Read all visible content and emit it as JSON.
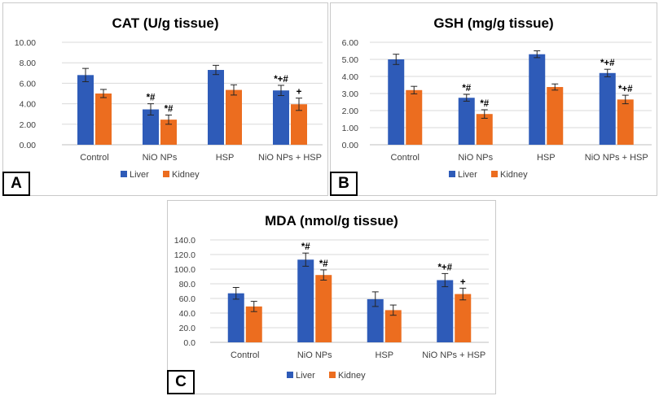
{
  "colors": {
    "liver": "#2e5bb8",
    "kidney": "#ec6d1f",
    "grid": "#d9d9d9",
    "axis": "#bfbfbf",
    "text": "#404040",
    "error": "#262626"
  },
  "chart_data": [
    {
      "type": "bar",
      "panel_label": "A",
      "title": "CAT (U/g tissue)",
      "categories": [
        "Control",
        "NiO NPs",
        "HSP",
        "NiO NPs + HSP"
      ],
      "series": [
        {
          "name": "Liver",
          "values": [
            6.8,
            3.45,
            7.3,
            5.3
          ],
          "errors": [
            0.65,
            0.55,
            0.45,
            0.5
          ],
          "annotations": [
            "",
            "*#",
            "",
            "*+#"
          ]
        },
        {
          "name": "Kidney",
          "values": [
            5.0,
            2.45,
            5.35,
            3.95
          ],
          "errors": [
            0.4,
            0.45,
            0.5,
            0.6
          ],
          "annotations": [
            "",
            "*#",
            "",
            "+"
          ]
        }
      ],
      "ylim": [
        0,
        10
      ],
      "yticks": [
        "0.00",
        "2.00",
        "4.00",
        "6.00",
        "8.00",
        "10.00"
      ],
      "xlabel": "",
      "ylabel": "",
      "grid": true,
      "legend": "bottom"
    },
    {
      "type": "bar",
      "panel_label": "B",
      "title": "GSH (mg/g tissue)",
      "categories": [
        "Control",
        "NiO NPs",
        "HSP",
        "NiO NPs + HSP"
      ],
      "series": [
        {
          "name": "Liver",
          "values": [
            5.0,
            2.75,
            5.3,
            4.2
          ],
          "errors": [
            0.3,
            0.2,
            0.2,
            0.22
          ],
          "annotations": [
            "",
            "*#",
            "",
            "*+#"
          ]
        },
        {
          "name": "Kidney",
          "values": [
            3.2,
            1.8,
            3.38,
            2.65
          ],
          "errors": [
            0.22,
            0.25,
            0.18,
            0.25
          ],
          "annotations": [
            "",
            "*#",
            "",
            "*+#"
          ]
        }
      ],
      "ylim": [
        0,
        6
      ],
      "yticks": [
        "0.00",
        "1.00",
        "2.00",
        "3.00",
        "4.00",
        "5.00",
        "6.00"
      ],
      "xlabel": "",
      "ylabel": "",
      "grid": true,
      "legend": "bottom"
    },
    {
      "type": "bar",
      "panel_label": "C",
      "title": "MDA (nmol/g tissue)",
      "categories": [
        "Control",
        "NiO NPs",
        "HSP",
        "NiO NPs + HSP"
      ],
      "series": [
        {
          "name": "Liver",
          "values": [
            67.0,
            113.0,
            59.0,
            85.0
          ],
          "errors": [
            8,
            9,
            10,
            9
          ],
          "annotations": [
            "",
            "*#",
            "",
            "*+#"
          ]
        },
        {
          "name": "Kidney",
          "values": [
            49.0,
            92.0,
            44.0,
            66.0
          ],
          "errors": [
            7,
            7,
            7,
            8
          ],
          "annotations": [
            "",
            "*#",
            "",
            "+"
          ]
        }
      ],
      "ylim": [
        0,
        140
      ],
      "yticks": [
        "0.0",
        "20.0",
        "40.0",
        "60.0",
        "80.0",
        "100.0",
        "120.0",
        "140.0"
      ],
      "xlabel": "",
      "ylabel": "",
      "grid": true,
      "legend": "bottom"
    }
  ]
}
